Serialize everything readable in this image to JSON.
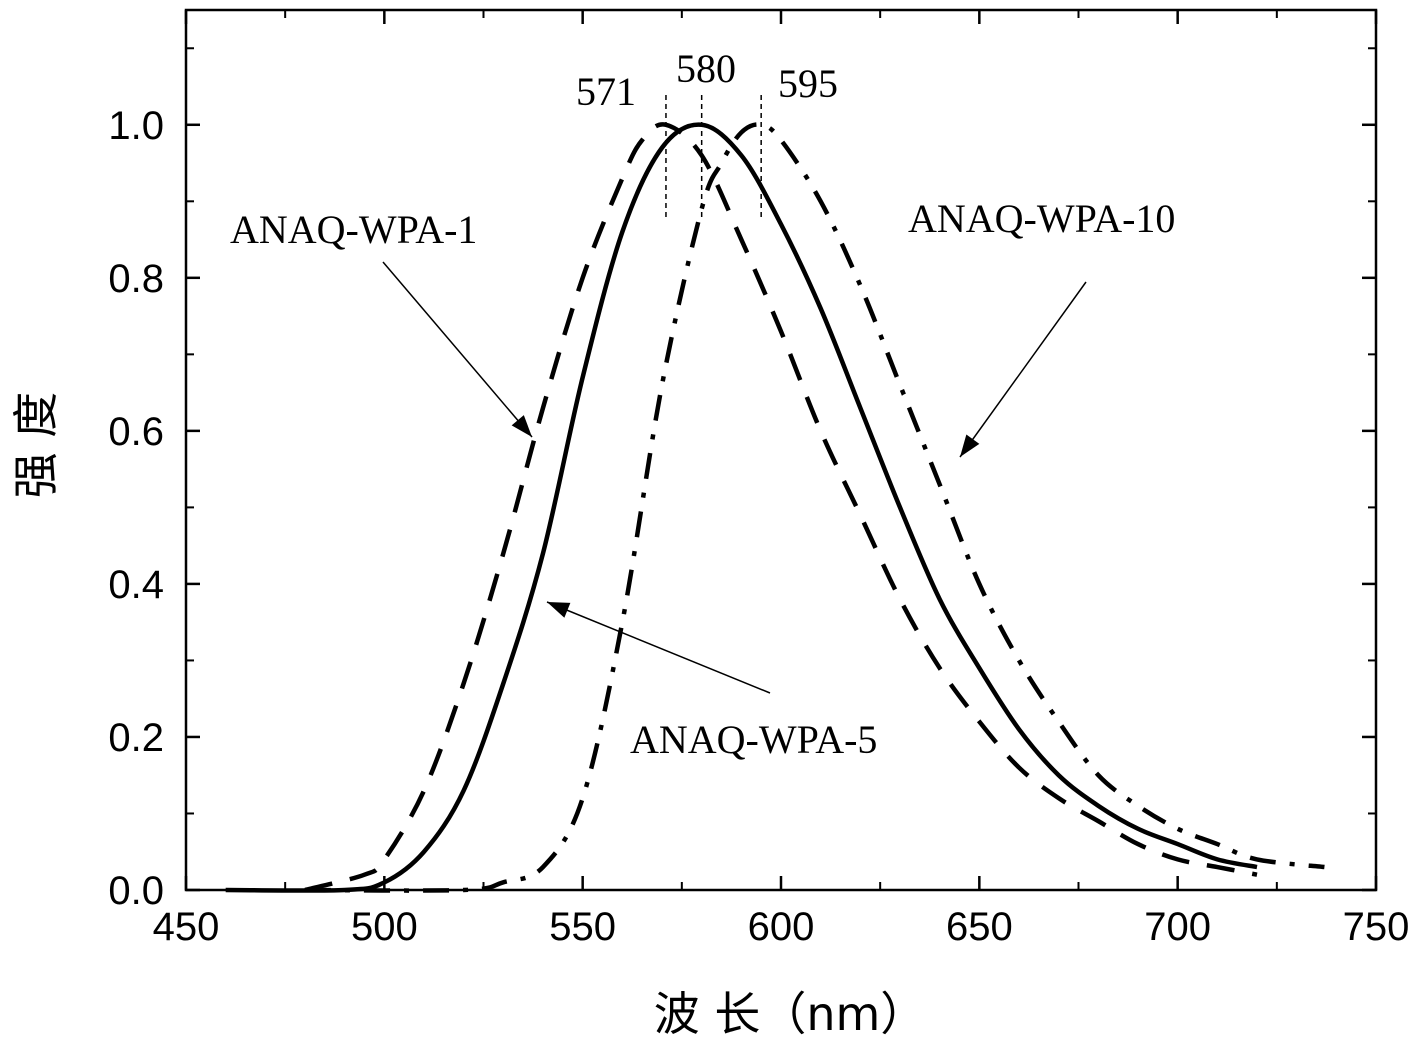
{
  "chart_data": {
    "type": "line",
    "xlabel": "波 长（nm）",
    "ylabel": "强 度",
    "xlim": [
      450,
      750
    ],
    "ylim": [
      0,
      1.15
    ],
    "x_ticks": [
      450,
      500,
      550,
      600,
      650,
      700,
      750
    ],
    "x_tick_labels": [
      "450",
      "500",
      "550",
      "600",
      "650",
      "700",
      "750"
    ],
    "y_ticks": [
      0.0,
      0.2,
      0.4,
      0.6,
      0.8,
      1.0
    ],
    "y_tick_labels": [
      "0.0",
      "0.2",
      "0.4",
      "0.6",
      "0.8",
      "1.0"
    ],
    "grid": false,
    "series": [
      {
        "name": "ANAQ-WPA-1",
        "style": "dashed",
        "x": [
          480,
          495,
          500,
          510,
          520,
          530,
          540,
          550,
          560,
          565,
          571,
          580,
          590,
          600,
          610,
          620,
          630,
          640,
          650,
          660,
          670,
          680,
          690,
          700,
          710,
          720
        ],
        "y": [
          0.0,
          0.02,
          0.04,
          0.13,
          0.27,
          0.44,
          0.63,
          0.8,
          0.93,
          0.98,
          1.0,
          0.96,
          0.85,
          0.73,
          0.6,
          0.49,
          0.38,
          0.29,
          0.22,
          0.16,
          0.12,
          0.09,
          0.06,
          0.04,
          0.03,
          0.02
        ]
      },
      {
        "name": "ANAQ-WPA-5",
        "style": "solid",
        "x": [
          460,
          490,
          500,
          510,
          520,
          530,
          540,
          550,
          560,
          570,
          580,
          590,
          600,
          610,
          620,
          630,
          640,
          650,
          660,
          670,
          680,
          690,
          700,
          710,
          720
        ],
        "y": [
          0.0,
          0.0,
          0.01,
          0.05,
          0.13,
          0.27,
          0.44,
          0.67,
          0.86,
          0.97,
          1.0,
          0.96,
          0.87,
          0.76,
          0.63,
          0.5,
          0.38,
          0.29,
          0.21,
          0.15,
          0.11,
          0.08,
          0.06,
          0.04,
          0.03
        ]
      },
      {
        "name": "ANAQ-WPA-10",
        "style": "dash-dot",
        "x": [
          480,
          520,
          530,
          540,
          550,
          560,
          570,
          580,
          585,
          590,
          595,
          600,
          610,
          620,
          630,
          640,
          650,
          660,
          670,
          680,
          690,
          700,
          710,
          720,
          737
        ],
        "y": [
          0.0,
          0.0,
          0.01,
          0.03,
          0.12,
          0.35,
          0.66,
          0.89,
          0.95,
          0.99,
          1.0,
          0.98,
          0.9,
          0.79,
          0.66,
          0.53,
          0.4,
          0.3,
          0.22,
          0.15,
          0.11,
          0.08,
          0.06,
          0.04,
          0.03
        ]
      }
    ],
    "annotations": [
      {
        "text": "ANAQ-WPA-1",
        "points_to_series": "ANAQ-WPA-1"
      },
      {
        "text": "ANAQ-WPA-5",
        "points_to_series": "ANAQ-WPA-5"
      },
      {
        "text": "ANAQ-WPA-10",
        "points_to_series": "ANAQ-WPA-10"
      }
    ],
    "peak_markers": [
      {
        "x": 571,
        "label": "571"
      },
      {
        "x": 580,
        "label": "580"
      },
      {
        "x": 595,
        "label": "595"
      }
    ]
  }
}
